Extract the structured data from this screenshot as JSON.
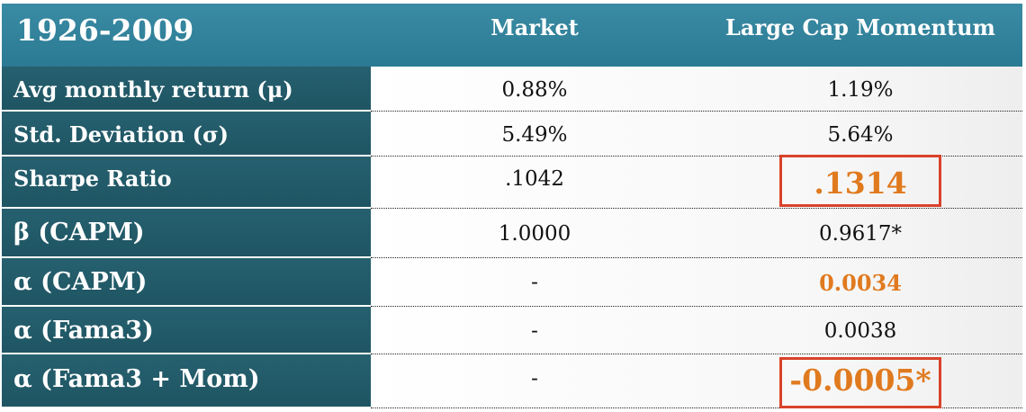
{
  "header": {
    "period": "1926-2009",
    "col_market": "Market",
    "col_momentum": "Large Cap Momentum"
  },
  "rows": [
    {
      "label": "Avg monthly return (μ)",
      "market": "0.88%",
      "momentum": "1.19%"
    },
    {
      "label": "Std. Deviation (σ)",
      "market": "5.49%",
      "momentum": "5.64%"
    },
    {
      "label": "Sharpe Ratio",
      "market": ".1042",
      "momentum": ".1314"
    },
    {
      "label": "β (CAPM)",
      "market": "1.0000",
      "momentum": "0.9617*"
    },
    {
      "label": "α (CAPM)",
      "market": "-",
      "momentum": "0.0034"
    },
    {
      "label": "α (Fama3)",
      "market": "-",
      "momentum": "0.0038"
    },
    {
      "label": "α (Fama3 + Mom)",
      "market": "-",
      "momentum": "-0.0005*"
    }
  ],
  "colors": {
    "header_bg": "#2e7f98",
    "label_bg": "#235b6a",
    "highlight_text": "#e07a1f",
    "highlight_box": "#d9432b"
  }
}
